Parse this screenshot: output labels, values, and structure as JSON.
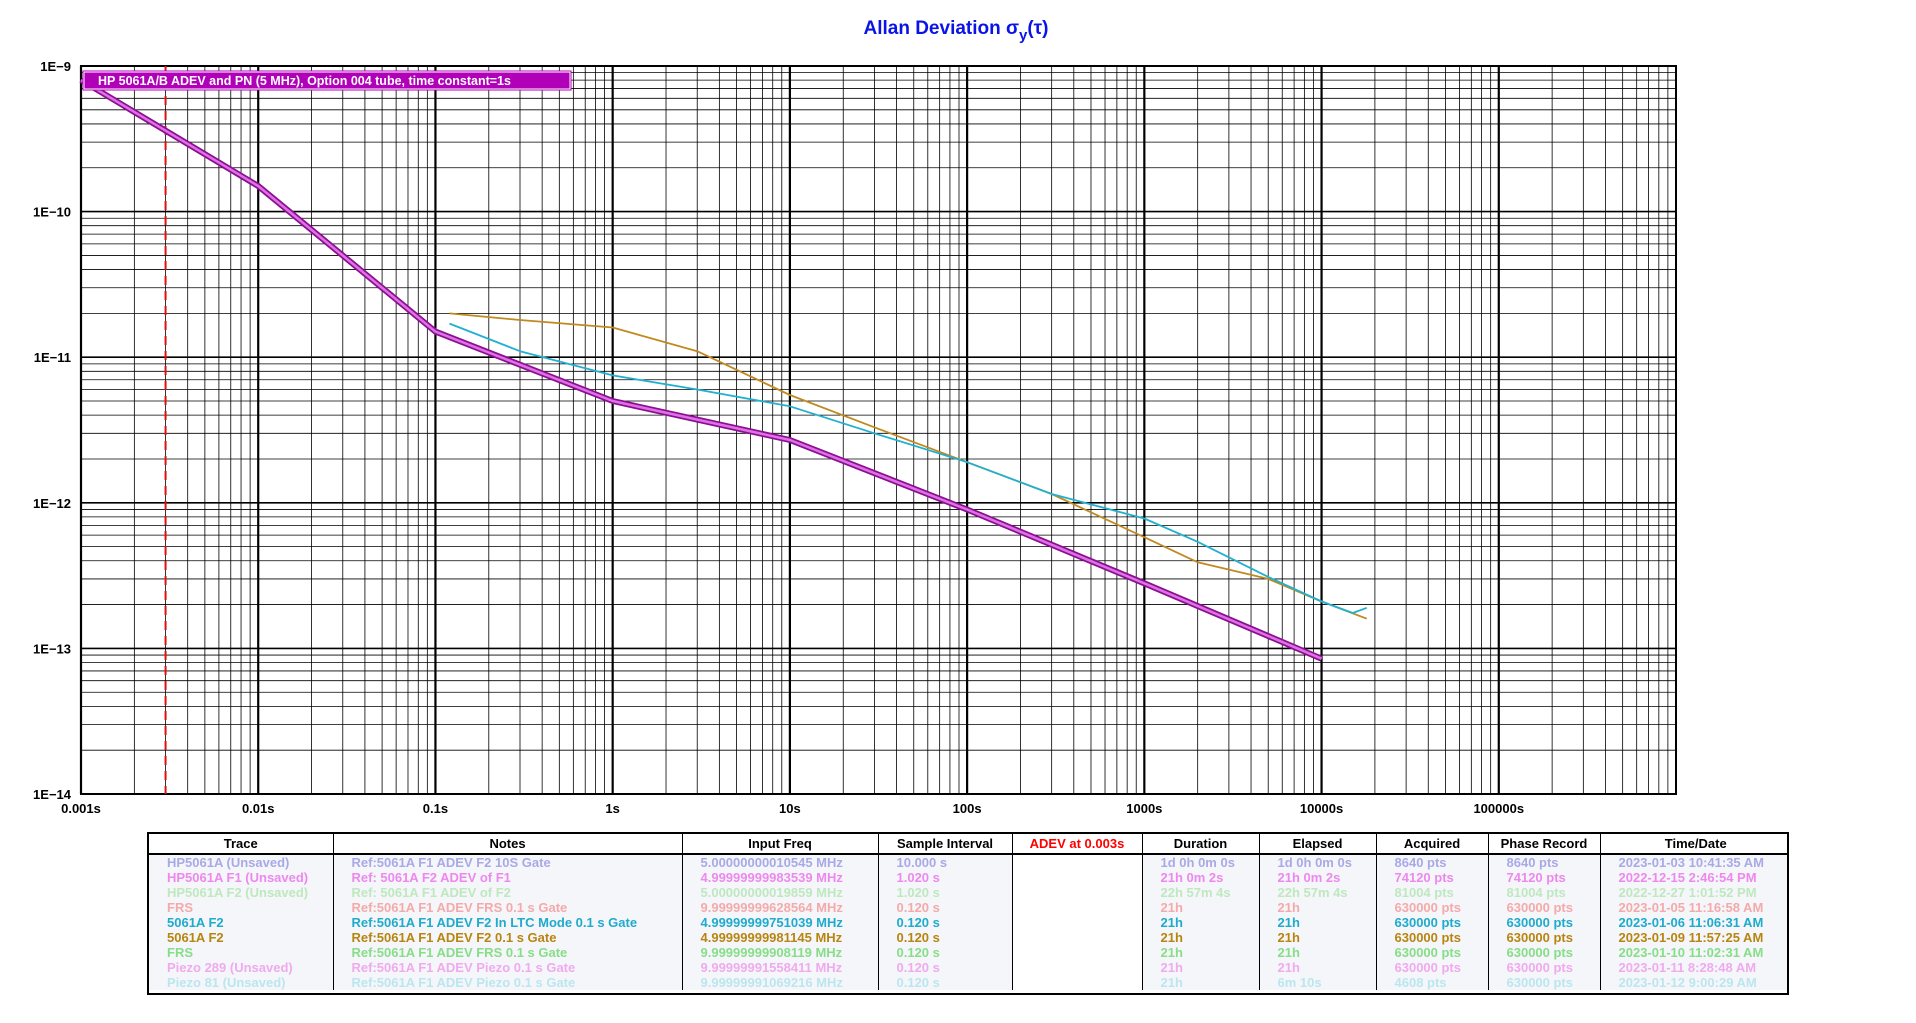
{
  "chart_data": {
    "type": "line",
    "title": "Allan Deviation σy(τ)",
    "title_main": "Allan Deviation σ",
    "title_sub": "y",
    "title_end": "(τ)",
    "x_scale": "log",
    "y_scale": "log",
    "xlim": [
      0.001,
      1000000
    ],
    "ylim": [
      1e-14,
      1e-09
    ],
    "x_tick_values": [
      0.001,
      0.01,
      0.1,
      1,
      10,
      100,
      1000,
      10000,
      100000
    ],
    "x_tick_labels": [
      "0.001s",
      "0.01s",
      "0.1s",
      "1s",
      "10s",
      "100s",
      "1000s",
      "10000s",
      "100000s"
    ],
    "y_tick_values": [
      1e-09,
      1e-10,
      1e-11,
      1e-12,
      1e-13,
      1e-14
    ],
    "y_tick_labels": [
      "1E−9",
      "1E−10",
      "1E−11",
      "1E−12",
      "1E−13",
      "1E−14"
    ],
    "grid": true,
    "annotation": "HP 5061A/B ADEV and PN (5 MHz), Option 004 tube, time constant=1s",
    "marker_line": {
      "x": 0.003,
      "color": "#e01010"
    },
    "series": [
      {
        "color": "#b020b8",
        "x": [
          0.001,
          0.01,
          0.1,
          1,
          10,
          100,
          1000,
          10000
        ],
        "y": [
          8e-10,
          1.5e-10,
          1.5e-11,
          5e-12,
          2.7e-12,
          9e-13,
          2.8e-13,
          8.5e-14
        ]
      },
      {
        "color": "#c08a20",
        "x": [
          0.12,
          0.3,
          1,
          3,
          10,
          30,
          100,
          300,
          1000,
          2000,
          5000,
          10000,
          18000
        ],
        "y": [
          2e-11,
          1.8e-11,
          1.6e-11,
          1.1e-11,
          5.5e-12,
          3.3e-12,
          1.9e-12,
          1.15e-12,
          5.8e-13,
          3.9e-13,
          3e-13,
          2.1e-13,
          1.6e-13
        ]
      },
      {
        "color": "#20b0d0",
        "x": [
          0.12,
          0.3,
          1,
          3,
          10,
          30,
          100,
          300,
          1000,
          2000,
          5000,
          10000,
          15000,
          18000
        ],
        "y": [
          1.7e-11,
          1.1e-11,
          7.5e-12,
          6e-12,
          4.6e-12,
          3e-12,
          1.9e-12,
          1.15e-12,
          7.8e-13,
          5.4e-13,
          3.1e-13,
          2.1e-13,
          1.75e-13,
          1.9e-13
        ]
      }
    ]
  },
  "table": {
    "headers": [
      "Trace",
      "Notes",
      "Input Freq",
      "Sample Interval",
      "ADEV at 0.003s",
      "Duration",
      "Elapsed",
      "Acquired",
      "Phase Record",
      "Time/Date"
    ],
    "header_colors": [
      "#000000",
      "#000000",
      "#000000",
      "#000000",
      "#ff0000",
      "#000000",
      "#000000",
      "#000000",
      "#000000",
      "#000000"
    ],
    "rows": [
      {
        "color": "#a9a9e6",
        "cells": [
          "HP5061A (Unsaved)",
          "Ref:5061A F1 ADEV F2 10S Gate",
          "5.00000000010545 MHz",
          "10.000 s",
          "",
          "1d 0h 0m 0s",
          "1d 0h 0m 0s",
          "8640 pts",
          "8640 pts",
          "2023-01-03 10:41:35 AM"
        ]
      },
      {
        "color": "#ee88ee",
        "cells": [
          "HP5061A F1 (Unsaved)",
          "Ref: 5061A F2 ADEV of F1",
          "4.99999999983539 MHz",
          "1.020 s",
          "",
          "21h 0m 2s",
          "21h 0m 2s",
          "74120 pts",
          "74120 pts",
          "2022-12-15 2:46:54 PM"
        ]
      },
      {
        "color": "#bfe8bf",
        "cells": [
          "HP5061A F2 (Unsaved)",
          "Ref: 5061A F1 ADEV of F2",
          "5.00000000019859 MHz",
          "1.020 s",
          "",
          "22h 57m 4s",
          "22h 57m 4s",
          "81004 pts",
          "81004 pts",
          "2022-12-27 1:01:52 PM"
        ]
      },
      {
        "color": "#f4aaaa",
        "cells": [
          "FRS",
          "Ref:5061A F1 ADEV FRS 0.1 s Gate",
          "9.99999999628564 MHz",
          "0.120 s",
          "",
          "21h",
          "21h",
          "630000 pts",
          "630000 pts",
          "2023-01-05 11:16:58 AM"
        ]
      },
      {
        "color": "#20aacc",
        "cells": [
          "5061A F2",
          "Ref:5061A F1 ADEV F2 In LTC Mode 0.1 s Gate",
          "4.99999999751039 MHz",
          "0.120 s",
          "",
          "21h",
          "21h",
          "630000 pts",
          "630000 pts",
          "2023-01-06 11:06:31 AM"
        ]
      },
      {
        "color": "#b88510",
        "cells": [
          "5061A F2",
          "Ref:5061A F1 ADEV F2 0.1 s Gate",
          "4.99999999981145 MHz",
          "0.120 s",
          "",
          "21h",
          "21h",
          "630000 pts",
          "630000 pts",
          "2023-01-09 11:57:25 AM"
        ]
      },
      {
        "color": "#88dd88",
        "cells": [
          "FRS",
          "Ref:5061A F1 ADEV FRS 0.1 s Gate",
          "9.99999999908119 MHz",
          "0.120 s",
          "",
          "21h",
          "21h",
          "630000 pts",
          "630000 pts",
          "2023-01-10 11:02:31 AM"
        ]
      },
      {
        "color": "#f0aaee",
        "cells": [
          "Piezo 289 (Unsaved)",
          "Ref:5061A F1 ADEV Piezo 0.1 s Gate",
          "9.99999991558411 MHz",
          "0.120 s",
          "",
          "21h",
          "21h",
          "630000 pts",
          "630000 pts",
          "2023-01-11 8:28:48 AM"
        ]
      },
      {
        "color": "#bbe6ee",
        "cells": [
          "Piezo 81 (Unsaved)",
          "Ref:5061A F1 ADEV Piezo 0.1 s Gate",
          "9.99999991069216 MHz",
          "0.120 s",
          "",
          "21h",
          "6m 10s",
          "4608 pts",
          "630000 pts",
          "2023-01-12 9:00:29 AM"
        ]
      }
    ]
  }
}
